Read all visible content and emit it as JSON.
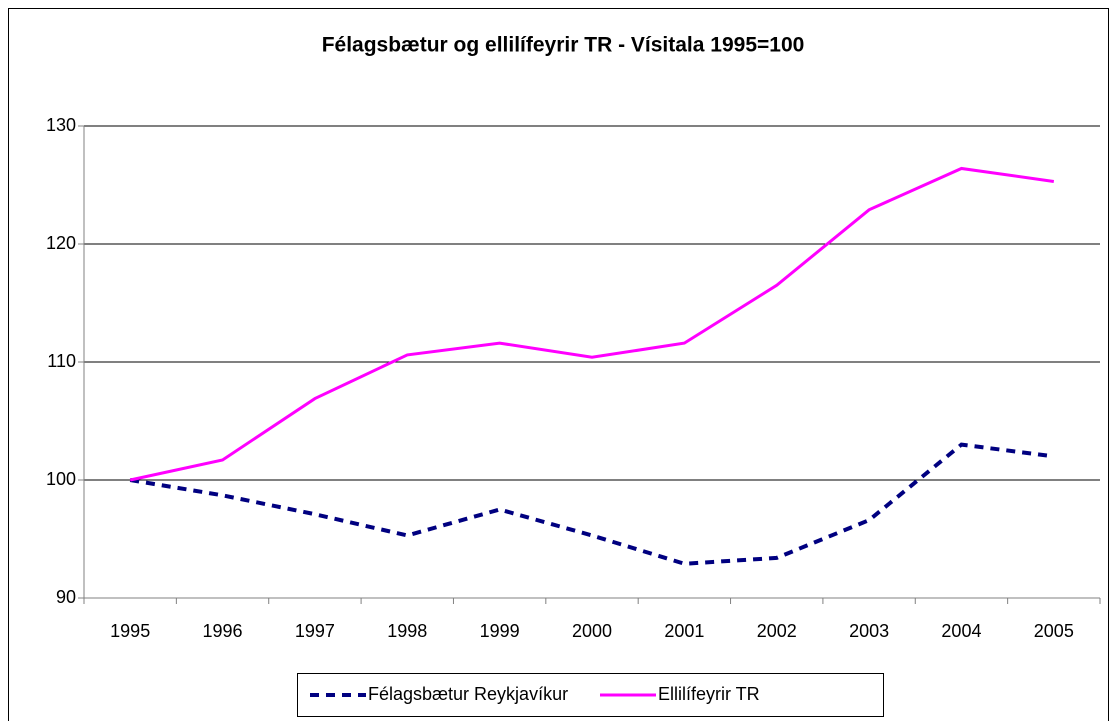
{
  "chart_data": {
    "type": "line",
    "title": "Félagsbætur og ellilífeyrir TR - Vísitala 1995=100",
    "categories": [
      "1995",
      "1996",
      "1997",
      "1998",
      "1999",
      "2000",
      "2001",
      "2002",
      "2003",
      "2004",
      "2005"
    ],
    "series": [
      {
        "name": "Félagsbætur Reykjavíkur",
        "color": "#000080",
        "dash": true,
        "values": [
          100,
          98.7,
          97.1,
          95.3,
          97.5,
          95.3,
          92.9,
          93.4,
          96.6,
          103.0,
          102.0
        ]
      },
      {
        "name": "Ellilífeyrir TR",
        "color": "#ff00ff",
        "dash": false,
        "values": [
          100,
          101.7,
          106.9,
          110.6,
          111.6,
          110.4,
          111.6,
          116.5,
          122.9,
          126.4,
          125.3
        ]
      }
    ],
    "ylim": [
      90,
      130
    ],
    "yticks": [
      90,
      100,
      110,
      120,
      130
    ],
    "grid": true,
    "legend": "bottom"
  }
}
